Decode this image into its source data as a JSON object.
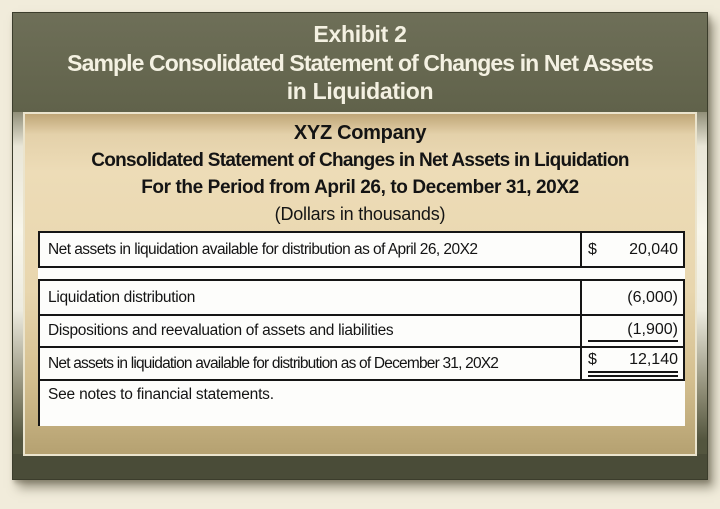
{
  "exhibit": {
    "title_line1": "Exhibit 2",
    "title_line2": "Sample Consolidated Statement of Changes in Net Assets",
    "title_line3": "in Liquidation"
  },
  "statement": {
    "company": "XYZ Company",
    "title": "Consolidated Statement of Changes in Net Assets in Liquidation",
    "period": "For the Period from April 26, to December 31, 20X2",
    "units": "(Dollars in thousands)",
    "rows": [
      {
        "label": "Net assets in liquidation available for distribution as of April 26, 20X2",
        "currency": "$",
        "amount": "20,040",
        "underline": "none"
      },
      {
        "label": "Liquidation distribution",
        "currency": "",
        "amount": "(6,000)",
        "underline": "none"
      },
      {
        "label": "Dispositions and reevaluation of assets and liabilities",
        "currency": "",
        "amount": "(1,900)",
        "underline": "single"
      },
      {
        "label": "Net assets in liquidation available for distribution as of December 31, 20X2",
        "currency": "$",
        "amount": "12,140",
        "underline": "double"
      }
    ],
    "footnote": "See notes to financial statements."
  },
  "colors": {
    "page_bg": "#f1ecdb",
    "frame_olive_light": "#6e6f58",
    "frame_olive_dark": "#494a36",
    "panel_tan_light": "#eddcb7",
    "panel_tan_dark": "#b5a171",
    "title_text": "#f4f1e2",
    "body_text": "#141414",
    "table_border": "#151515",
    "table_white": "#fdfdfb"
  }
}
